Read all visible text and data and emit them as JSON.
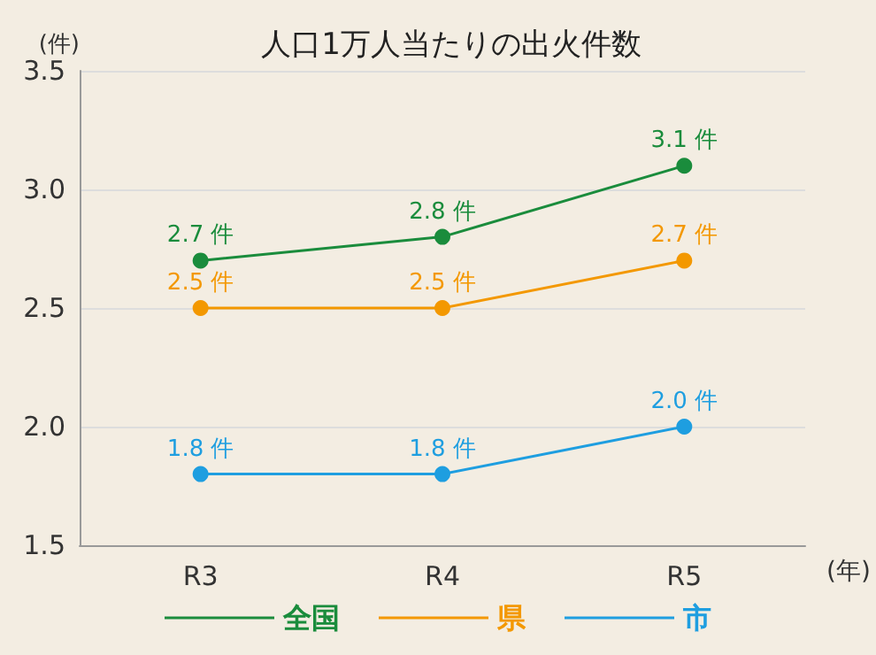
{
  "chart_data": {
    "type": "line",
    "title": "人口1万人当たりの出火件数",
    "ylabel": "(件)",
    "xlabel": "(年)",
    "categories": [
      "R3",
      "R4",
      "R5"
    ],
    "series": [
      {
        "name": "全国",
        "color": "#1a8c3c",
        "values": [
          2.7,
          2.8,
          3.1
        ],
        "value_labels": [
          "2.7 件",
          "2.8 件",
          "3.1 件"
        ]
      },
      {
        "name": "県",
        "color": "#f39800",
        "values": [
          2.5,
          2.5,
          2.7
        ],
        "value_labels": [
          "2.5 件",
          "2.5 件",
          "2.7 件"
        ]
      },
      {
        "name": "市",
        "color": "#1e9ee0",
        "values": [
          1.8,
          1.8,
          2.0
        ],
        "value_labels": [
          "1.8 件",
          "1.8 件",
          "2.0 件"
        ]
      }
    ],
    "ylim": [
      1.5,
      3.5
    ],
    "yticks": [
      1.5,
      {
        "value": 2,
        "label": "2.0"
      },
      2.5,
      {
        "value": 3,
        "label": "3.0"
      },
      3.5
    ],
    "grid": "y",
    "legend": "bottom",
    "marker": "circle",
    "line_style": "solid"
  }
}
